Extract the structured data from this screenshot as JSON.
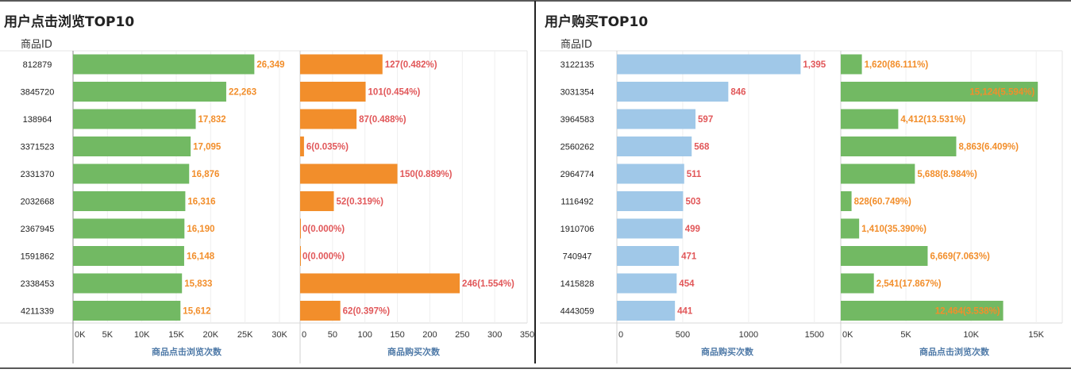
{
  "colors": {
    "green": "#72b963",
    "orange": "#f28e2b",
    "lightblue": "#a0c8e8",
    "label_orange": "#f28e2b",
    "label_red": "#e15759",
    "axis_title": "#4e79a7"
  },
  "chart_data": [
    {
      "type": "bar",
      "title": "用户点击浏览TOP10",
      "row_header": "商品ID",
      "categories": [
        "812879",
        "3845720",
        "138964",
        "3371523",
        "2331370",
        "2032668",
        "2367945",
        "1591862",
        "2338453",
        "4211339"
      ],
      "panels": [
        {
          "xlabel": "商品点击浏览次数",
          "xlim": [
            0,
            33000
          ],
          "ticks": [
            0,
            5000,
            10000,
            15000,
            20000,
            25000,
            30000
          ],
          "tick_labels": [
            "0K",
            "5K",
            "10K",
            "15K",
            "20K",
            "25K",
            "30K"
          ],
          "bar_color": "#72b963",
          "label_color": "#f28e2b",
          "values": [
            26349,
            22263,
            17832,
            17095,
            16876,
            16316,
            16190,
            16148,
            15833,
            15612
          ],
          "labels": [
            "26,349",
            "22,263",
            "17,832",
            "17,095",
            "16,876",
            "16,316",
            "16,190",
            "16,148",
            "15,833",
            "15,612"
          ]
        },
        {
          "xlabel": "商品购买次数",
          "xlim": [
            0,
            350
          ],
          "ticks": [
            0,
            50,
            100,
            150,
            200,
            250,
            300,
            350
          ],
          "tick_labels": [
            "0",
            "50",
            "100",
            "150",
            "200",
            "250",
            "300",
            "350"
          ],
          "bar_color": "#f28e2b",
          "label_color": "#e15759",
          "values": [
            127,
            101,
            87,
            6,
            150,
            52,
            0,
            0,
            246,
            62
          ],
          "labels": [
            "127(0.482%)",
            "101(0.454%)",
            "87(0.488%)",
            "6(0.035%)",
            "150(0.889%)",
            "52(0.319%)",
            "0(0.000%)",
            "0(0.000%)",
            "246(1.554%)",
            "62(0.397%)"
          ]
        }
      ]
    },
    {
      "type": "bar",
      "title": "用户购买TOP10",
      "row_header": "商品ID",
      "categories": [
        "3122135",
        "3031354",
        "3964583",
        "2560262",
        "2964774",
        "1116492",
        "1910706",
        "740947",
        "1415828",
        "4443059"
      ],
      "panels": [
        {
          "xlabel": "商品购买次数",
          "xlim": [
            0,
            1700
          ],
          "ticks": [
            0,
            500,
            1000,
            1500
          ],
          "tick_labels": [
            "0",
            "500",
            "1000",
            "1500"
          ],
          "bar_color": "#a0c8e8",
          "label_color": "#e15759",
          "values": [
            1395,
            846,
            597,
            568,
            511,
            503,
            499,
            471,
            454,
            441
          ],
          "labels": [
            "1,395",
            "846",
            "597",
            "568",
            "511",
            "503",
            "499",
            "471",
            "454",
            "441"
          ]
        },
        {
          "xlabel": "商品点击浏览次数",
          "xlim": [
            0,
            17000
          ],
          "ticks": [
            0,
            5000,
            10000,
            15000
          ],
          "tick_labels": [
            "0K",
            "5K",
            "10K",
            "15K"
          ],
          "bar_color": "#72b963",
          "label_color": "#f28e2b",
          "values": [
            1620,
            15124,
            4412,
            8863,
            5688,
            828,
            1410,
            6669,
            2541,
            12464
          ],
          "labels": [
            "1,620(86.111%)",
            "15,124(5.594%)",
            "4,412(13.531%)",
            "8,863(6.409%)",
            "5,688(8.984%)",
            "828(60.749%)",
            "1,410(35.390%)",
            "6,669(7.063%)",
            "2,541(17.867%)",
            "12,464(3.538%)"
          ]
        }
      ]
    }
  ]
}
